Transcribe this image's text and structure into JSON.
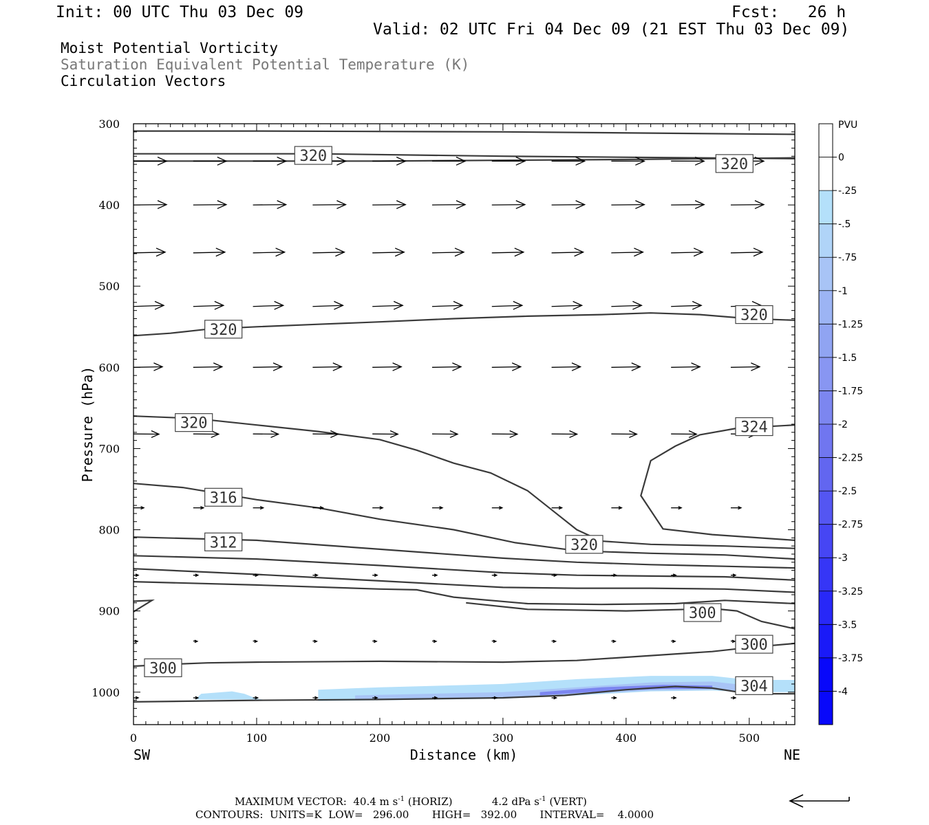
{
  "header": {
    "init": "Init: 00 UTC Thu 03 Dec 09",
    "fcst": "Fcst:   26 h",
    "valid": "Valid: 02 UTC Fri 04 Dec 09 (21 EST Thu 03 Dec 09)"
  },
  "fields": [
    {
      "label": "Moist Potential Vorticity",
      "color": "#000000"
    },
    {
      "label": "Saturation Equivalent Potential Temperature (K)",
      "color": "#777777"
    },
    {
      "label": "Circulation Vectors",
      "color": "#000000"
    }
  ],
  "footer": {
    "max_vector_label": "MAXIMUM VECTOR:",
    "horiz_value": "40.4 m s",
    "horiz_unit": "(HORIZ)",
    "vert_value": "4.2 dPa s",
    "vert_unit": "(VERT)",
    "exp_text": "-1",
    "contours_line": "CONTOURS:  UNITS=K  LOW=   296.00       HIGH=   392.00       INTERVAL=    4.0000"
  },
  "chart_data": {
    "type": "cross-section",
    "xlabel": "Distance (km)",
    "ylabel": "Pressure (hPa)",
    "xlim": [
      0,
      537
    ],
    "ylim": [
      1040,
      300
    ],
    "y_scale": "linear",
    "x_ticks": [
      0,
      100,
      200,
      300,
      400,
      500
    ],
    "y_ticks": [
      300,
      400,
      500,
      600,
      700,
      800,
      900,
      1000
    ],
    "x_end_labels": {
      "left": "SW",
      "right": "NE"
    },
    "colorbar": {
      "title": "PVU",
      "levels": [
        "0",
        "-.25",
        "-.5",
        "-.75",
        "-1",
        "-1.25",
        "-1.5",
        "-1.75",
        "-2",
        "-2.25",
        "-2.5",
        "-2.75",
        "-3",
        "-3.25",
        "-3.5",
        "-3.75",
        "-4"
      ],
      "colors": [
        "#ffffff",
        "#ffffff",
        "#b4e0fa",
        "#b0d4f8",
        "#a8c4f6",
        "#9cb4f4",
        "#90a4f2",
        "#8896f2",
        "#7c86f0",
        "#7076f0",
        "#6266f0",
        "#5456f2",
        "#4646f4",
        "#3636f6",
        "#2828f8",
        "#1a1af8",
        "#0808fa"
      ]
    },
    "contours": [
      {
        "points": [
          [
            0,
            309
          ],
          [
            100,
            309
          ],
          [
            300,
            310
          ],
          [
            537,
            313
          ]
        ]
      },
      {
        "points": [
          [
            0,
            337
          ],
          [
            150,
            337
          ],
          [
            300,
            340
          ],
          [
            537,
            343
          ]
        ]
      },
      {
        "points": [
          [
            0,
            346
          ],
          [
            200,
            346
          ],
          [
            400,
            344
          ],
          [
            537,
            342
          ]
        ]
      },
      {
        "points": [
          [
            0,
            561
          ],
          [
            30,
            558
          ],
          [
            60,
            553
          ],
          [
            100,
            550
          ],
          [
            150,
            547
          ],
          [
            200,
            544
          ],
          [
            260,
            540
          ],
          [
            320,
            537
          ],
          [
            380,
            535
          ],
          [
            420,
            533
          ],
          [
            460,
            535
          ],
          [
            500,
            540
          ],
          [
            537,
            542
          ]
        ]
      },
      {
        "points": [
          [
            0,
            660
          ],
          [
            50,
            663
          ],
          [
            100,
            671
          ],
          [
            150,
            679
          ],
          [
            200,
            689
          ],
          [
            230,
            702
          ],
          [
            260,
            718
          ],
          [
            290,
            730
          ],
          [
            320,
            752
          ],
          [
            340,
            776
          ],
          [
            360,
            800
          ],
          [
            380,
            814
          ],
          [
            420,
            818
          ],
          [
            480,
            820
          ],
          [
            537,
            823
          ]
        ]
      },
      {
        "points": [
          [
            537,
            671
          ],
          [
            490,
            675
          ],
          [
            460,
            683
          ],
          [
            440,
            697
          ],
          [
            420,
            715
          ],
          [
            412,
            758
          ],
          [
            430,
            799
          ],
          [
            470,
            806
          ],
          [
            537,
            813
          ]
        ]
      },
      {
        "points": [
          [
            0,
            743
          ],
          [
            40,
            748
          ],
          [
            100,
            763
          ],
          [
            150,
            773
          ],
          [
            200,
            787
          ],
          [
            260,
            800
          ],
          [
            310,
            816
          ],
          [
            360,
            826
          ],
          [
            420,
            829
          ],
          [
            480,
            831
          ],
          [
            537,
            836
          ]
        ]
      },
      {
        "points": [
          [
            0,
            809
          ],
          [
            100,
            813
          ],
          [
            200,
            824
          ],
          [
            300,
            835
          ],
          [
            360,
            840
          ],
          [
            420,
            843
          ],
          [
            480,
            845
          ],
          [
            537,
            847
          ]
        ]
      },
      {
        "points": [
          [
            0,
            832
          ],
          [
            100,
            836
          ],
          [
            200,
            844
          ],
          [
            300,
            853
          ],
          [
            360,
            856
          ],
          [
            420,
            857
          ],
          [
            480,
            858
          ],
          [
            537,
            862
          ]
        ]
      },
      {
        "points": [
          [
            0,
            848
          ],
          [
            100,
            855
          ],
          [
            200,
            863
          ],
          [
            300,
            871
          ],
          [
            360,
            872
          ],
          [
            420,
            872
          ],
          [
            480,
            873
          ],
          [
            537,
            877
          ]
        ]
      },
      {
        "points": [
          [
            0,
            864
          ],
          [
            100,
            868
          ],
          [
            200,
            873
          ],
          [
            230,
            874
          ],
          [
            260,
            883
          ],
          [
            320,
            891
          ],
          [
            380,
            892
          ],
          [
            440,
            891
          ],
          [
            480,
            887
          ],
          [
            537,
            891
          ]
        ]
      },
      {
        "points": [
          [
            0,
            901
          ],
          [
            15,
            887
          ],
          [
            0,
            888
          ]
        ]
      },
      {
        "points": [
          [
            270,
            890
          ],
          [
            320,
            898
          ],
          [
            400,
            900
          ],
          [
            450,
            898
          ],
          [
            470,
            897
          ],
          [
            490,
            900
          ],
          [
            510,
            913
          ],
          [
            537,
            922
          ]
        ]
      },
      {
        "points": [
          [
            0,
            968
          ],
          [
            25,
            966
          ],
          [
            60,
            964
          ],
          [
            100,
            963
          ],
          [
            200,
            962
          ],
          [
            300,
            963
          ],
          [
            360,
            961
          ],
          [
            420,
            955
          ],
          [
            470,
            950
          ],
          [
            500,
            945
          ],
          [
            537,
            940
          ]
        ]
      },
      {
        "points": [
          [
            0,
            1012
          ],
          [
            100,
            1010
          ],
          [
            200,
            1009
          ],
          [
            300,
            1007
          ],
          [
            350,
            1004
          ],
          [
            400,
            997
          ],
          [
            440,
            993
          ],
          [
            470,
            995
          ],
          [
            500,
            1002
          ],
          [
            537,
            1002
          ]
        ]
      }
    ],
    "contour_labels": [
      {
        "text": "320",
        "x": 146,
        "y": 339
      },
      {
        "text": "320",
        "x": 488,
        "y": 349
      },
      {
        "text": "320",
        "x": 73,
        "y": 553
      },
      {
        "text": "320",
        "x": 504,
        "y": 535
      },
      {
        "text": "320",
        "x": 49,
        "y": 668
      },
      {
        "text": "324",
        "x": 504,
        "y": 673
      },
      {
        "text": "316",
        "x": 73,
        "y": 760
      },
      {
        "text": "312",
        "x": 73,
        "y": 815
      },
      {
        "text": "320",
        "x": 366,
        "y": 818
      },
      {
        "text": "300",
        "x": 462,
        "y": 902
      },
      {
        "text": "300",
        "x": 504,
        "y": 941
      },
      {
        "text": "300",
        "x": 24,
        "y": 970
      },
      {
        "text": "304",
        "x": 504,
        "y": 992
      }
    ],
    "vector_rows": [
      {
        "p": 346,
        "len": 48,
        "dp": 0
      },
      {
        "p": 400,
        "len": 48,
        "dp": -0.5
      },
      {
        "p": 459,
        "len": 46,
        "dp": -1
      },
      {
        "p": 525,
        "len": 44,
        "dp": -1.5
      },
      {
        "p": 600,
        "len": 42,
        "dp": -0.8
      },
      {
        "p": 682,
        "len": 37,
        "dp": 0.3
      },
      {
        "p": 773,
        "len": 15,
        "dp": 0
      },
      {
        "p": 856,
        "len": 7,
        "dp": 0
      },
      {
        "p": 937,
        "len": 6,
        "dp": 0.5
      },
      {
        "p": 1007,
        "len": 7,
        "dp": 0
      }
    ],
    "pv_shading": [
      {
        "level": "-.5",
        "x": [
          50,
          55,
          80,
          90,
          100,
          105
        ],
        "top": [
          1009,
          1002,
          999,
          1002,
          1008,
          1009
        ],
        "bottom": [
          1009,
          1009,
          1009,
          1009,
          1009,
          1009
        ]
      },
      {
        "level": "-.5",
        "x": [
          150,
          200,
          300,
          360,
          420,
          470,
          500,
          537
        ],
        "top": [
          997,
          994,
          990,
          984,
          980,
          980,
          985,
          985
        ],
        "bottom": [
          1011,
          1010,
          1008,
          1004,
          999,
          998,
          1000,
          1000
        ]
      },
      {
        "level": "-1",
        "x": [
          180,
          300,
          360,
          420,
          470,
          500
        ],
        "top": [
          1004,
          1000,
          994,
          988,
          987,
          992
        ],
        "bottom": [
          1009,
          1007,
          1003,
          998,
          997,
          999
        ]
      },
      {
        "level": "-2",
        "x": [
          330,
          380,
          430,
          470
        ],
        "top": [
          1000,
          994,
          991,
          992
        ],
        "bottom": [
          1004,
          999,
          996,
          996
        ]
      }
    ]
  }
}
